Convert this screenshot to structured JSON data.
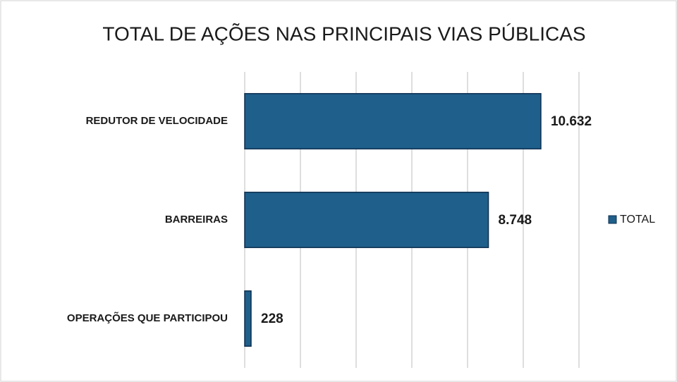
{
  "chart_data": {
    "type": "bar",
    "orientation": "horizontal",
    "title": "TOTAL DE AÇÕES  NAS PRINCIPAIS VIAS PÚBLICAS",
    "categories": [
      "REDUTOR DE VELOCIDADE",
      "BARREIRAS",
      "OPERAÇÕES QUE PARTICIPOU"
    ],
    "series": [
      {
        "name": "TOTAL",
        "color": "#1f5f8b",
        "values": [
          10632,
          8748,
          228
        ],
        "value_labels": [
          "10.632",
          "8.748",
          "228"
        ]
      }
    ],
    "xlim": [
      0,
      12000
    ],
    "xticks": [
      0,
      2000,
      4000,
      6000,
      8000,
      10000,
      12000
    ],
    "grid": true,
    "legend": "right"
  }
}
